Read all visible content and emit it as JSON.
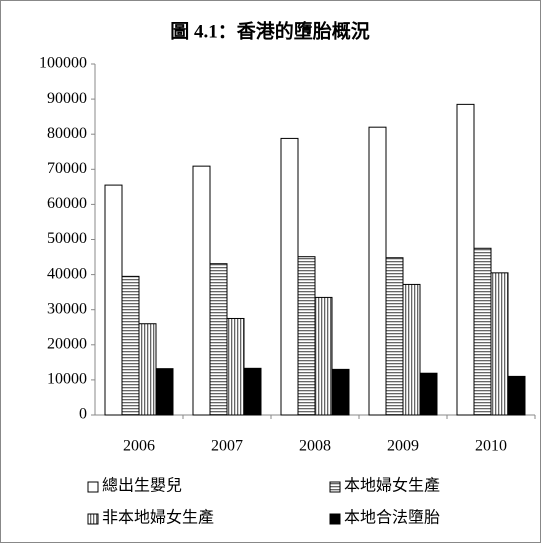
{
  "chart_data": {
    "type": "bar",
    "title": "圖 4.1：香港的墮胎概況",
    "categories": [
      "2006",
      "2007",
      "2008",
      "2009",
      "2010"
    ],
    "series": [
      {
        "name": "總出生嬰兒",
        "color": "#ffffff",
        "values": [
          65500,
          70900,
          78800,
          82000,
          88500
        ]
      },
      {
        "name": "本地婦女生產",
        "color": "#b0b0b0",
        "values": [
          39500,
          43100,
          45100,
          44800,
          47500
        ]
      },
      {
        "name": "非本地婦女生產",
        "color": "#909090",
        "values": [
          26000,
          27500,
          33500,
          37200,
          40500
        ]
      },
      {
        "name": "本地合法墮胎",
        "color": "#000000",
        "values": [
          13200,
          13300,
          13000,
          11900,
          11000
        ]
      }
    ],
    "ylim": [
      0,
      100000
    ],
    "yticks": [
      0,
      10000,
      20000,
      30000,
      40000,
      50000,
      60000,
      70000,
      80000,
      90000,
      100000
    ],
    "grid": false
  }
}
